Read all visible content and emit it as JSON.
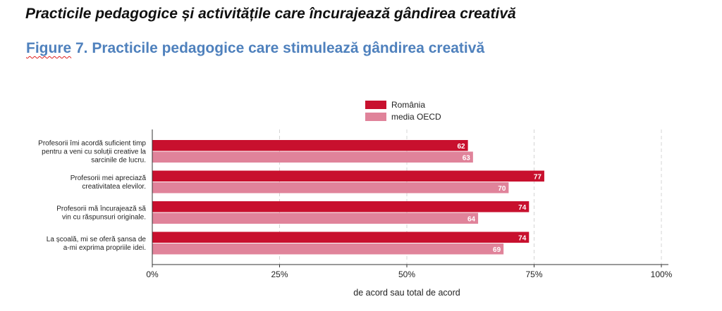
{
  "page": {
    "heading": "Practicile pedagogice și activitățile care încurajează gândirea creativă",
    "figure_label": "Figure",
    "figure_title_rest": " 7. Practicile pedagogice care stimulează gândirea creativă"
  },
  "chart_data": {
    "type": "bar",
    "orientation": "horizontal",
    "categories": [
      [
        "Profesorii îmi acordă suficient timp",
        "pentru a veni cu soluții creative la",
        "sarcinile de lucru."
      ],
      [
        "Profesorii mei apreciază",
        "creativitatea elevilor."
      ],
      [
        "Profesorii mă încurajează să",
        "vin cu răspunsuri originale."
      ],
      [
        "La școală, mi se oferă șansa de",
        "a-mi exprima propriile idei."
      ]
    ],
    "series": [
      {
        "name": "România",
        "color": "#c8102e",
        "values": [
          62,
          77,
          74,
          74
        ]
      },
      {
        "name": "media OECD",
        "color": "#e0839a",
        "values": [
          63,
          70,
          64,
          69
        ]
      }
    ],
    "xlabel": "de acord sau total de acord",
    "xlim": [
      0,
      100
    ],
    "xticks": [
      0,
      25,
      50,
      75,
      100
    ],
    "xtick_labels": [
      "0%",
      "25%",
      "50%",
      "75%",
      "100%"
    ],
    "grid": "vertical dashed",
    "legend_position": "top-center"
  }
}
